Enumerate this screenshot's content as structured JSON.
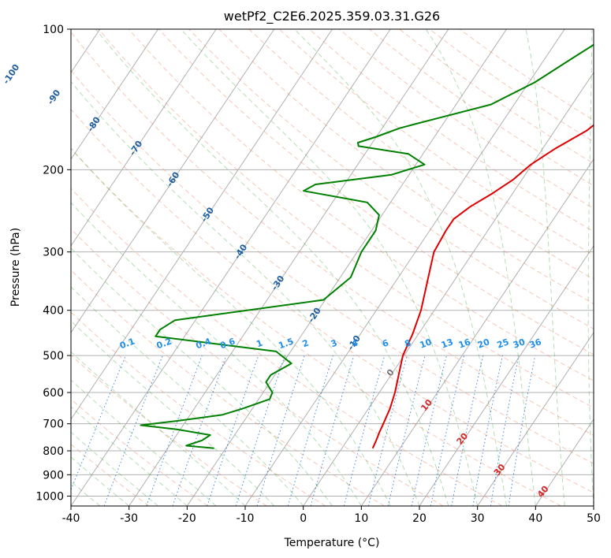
{
  "chart_data": {
    "type": "line",
    "title": "wetPf2_C2E6.2025.359.03.31.G26",
    "xlabel": "Temperature (°C)",
    "ylabel": "Pressure (hPa)",
    "xlim": [
      -40,
      50
    ],
    "ylim": [
      1050,
      100
    ],
    "y_scale": "log",
    "x_ticks": [
      -40,
      -30,
      -20,
      -10,
      0,
      10,
      20,
      30,
      40,
      50
    ],
    "y_ticks": [
      100,
      200,
      300,
      400,
      500,
      600,
      700,
      800,
      900,
      1000
    ],
    "grid": true,
    "series": [
      {
        "color": "#e00000",
        "p": [
          790,
          760,
          730,
          700,
          650,
          600,
          550,
          500,
          450,
          400,
          350,
          300,
          270,
          255,
          240,
          225,
          210,
          195,
          180,
          165,
          150,
          135,
          120,
          110,
          100
        ],
        "t": [
          5.3,
          5.0,
          4.6,
          4.3,
          3.7,
          2.7,
          1.3,
          -0.2,
          -1.0,
          -2.3,
          -4.4,
          -6.8,
          -7.2,
          -7.2,
          -5.8,
          -3.5,
          -1.5,
          -0.2,
          2.2,
          5.5,
          7.5,
          9.5,
          11.5,
          12.8,
          14.0
        ]
      },
      {
        "color": "#008000",
        "p": [
          790,
          780,
          760,
          740,
          720,
          705,
          690,
          670,
          650,
          620,
          600,
          570,
          550,
          520,
          490,
          470,
          455,
          440,
          420,
          380,
          340,
          300,
          270,
          250,
          235,
          222,
          215,
          205,
          195,
          185,
          178,
          175,
          170,
          163,
          160,
          155,
          145,
          130,
          115,
          105,
          100
        ],
        "t": [
          -22,
          -27.1,
          -25,
          -24.2,
          -30.5,
          -37.3,
          -31.5,
          -24.5,
          -21.7,
          -18.1,
          -18.4,
          -20.7,
          -20.7,
          -18.5,
          -22.5,
          -35,
          -45,
          -45,
          -43.5,
          -20.3,
          -18.2,
          -19.3,
          -19.3,
          -20.5,
          -24,
          -36.3,
          -35,
          -23,
          -18.5,
          -22.5,
          -32,
          -32.5,
          -30,
          -27,
          -25,
          -21.5,
          -14,
          -9,
          -5.2,
          -2.3,
          -1.2
        ]
      }
    ],
    "isotherm_labels": [
      "-100",
      "-90",
      "-80",
      "-70",
      "-60",
      "-50",
      "-40",
      "-30",
      "-20",
      "-10"
    ],
    "mixing_ratio_labels": [
      "0.1",
      "0.2",
      "0.4",
      "0.6",
      "1",
      "1.5",
      "2",
      "3",
      "4",
      "6",
      "8",
      "10",
      "13",
      "16",
      "20",
      "25",
      "30",
      "36"
    ],
    "moist_adiabat_labels": [
      "0",
      "10",
      "20",
      "30",
      "40"
    ]
  }
}
